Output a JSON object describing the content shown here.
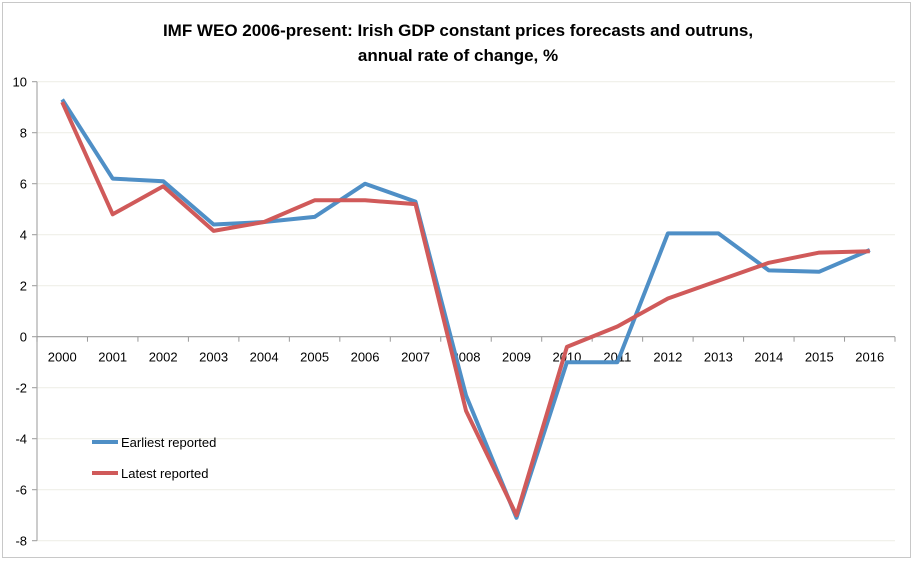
{
  "chart_data": {
    "type": "line",
    "title": [
      "IMF WEO 2006-present: Irish GDP constant prices forecasts and outruns,",
      "annual rate of change, %"
    ],
    "xlabel": "",
    "ylabel": "",
    "categories": [
      "2000",
      "2001",
      "2002",
      "2003",
      "2004",
      "2005",
      "2006",
      "2007",
      "2008",
      "2009",
      "2010",
      "2011",
      "2012",
      "2013",
      "2014",
      "2015",
      "2016"
    ],
    "ylim": [
      -8,
      10
    ],
    "yticks": [
      -8,
      -6,
      -4,
      -2,
      0,
      2,
      4,
      6,
      8,
      10
    ],
    "grid": true,
    "legend_position": "bottom-left",
    "series": [
      {
        "name": "Earliest reported",
        "color": "#4f8fc6",
        "values": [
          9.3,
          6.2,
          6.1,
          4.4,
          4.5,
          4.7,
          6.0,
          5.3,
          -2.3,
          -7.1,
          -1.0,
          -1.0,
          4.05,
          4.05,
          2.6,
          2.55,
          3.4
        ]
      },
      {
        "name": "Latest reported",
        "color": "#d05a5a",
        "values": [
          9.2,
          4.8,
          5.9,
          4.15,
          4.5,
          5.35,
          5.35,
          5.2,
          -2.9,
          -7.0,
          -0.4,
          0.4,
          1.5,
          2.2,
          2.9,
          3.3,
          3.35
        ]
      }
    ]
  }
}
